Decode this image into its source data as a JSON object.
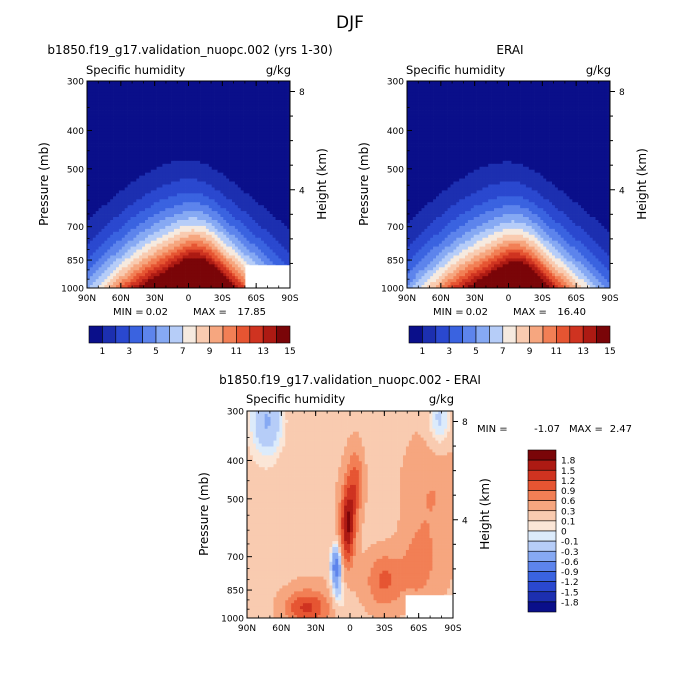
{
  "page_title": "DJF",
  "chart_data": [
    {
      "type": "heatmap",
      "title": "b1850.f19_g17.validation_nuopc.002 (yrs 1-30)",
      "left_label": "Specific humidity",
      "right_label": "g/kg",
      "xlabel": "",
      "ylabel": "Pressure (mb)",
      "y2label": "Height (km)",
      "x_ticks": [
        "90N",
        "60N",
        "30N",
        "0",
        "30S",
        "60S",
        "90S"
      ],
      "y_ticks": [
        "300",
        "400",
        "500",
        "700",
        "850",
        "1000"
      ],
      "y2_ticks": [
        "8",
        "4"
      ],
      "stats": {
        "min_label": "MIN =",
        "min": "0.02",
        "max_label": "MAX =",
        "max": "17.85"
      },
      "colorbar": {
        "labels": [
          "1",
          "3",
          "5",
          "7",
          "9",
          "11",
          "13",
          "15"
        ],
        "levels": [
          1,
          2,
          3,
          4,
          5,
          6,
          7,
          8,
          9,
          10,
          11,
          12,
          13,
          14,
          15
        ],
        "colors": [
          "#0a0f8a",
          "#1c2fb0",
          "#2a48cf",
          "#3a63e0",
          "#5d84ec",
          "#86a9f3",
          "#b6cdf8",
          "#f6eadf",
          "#f9cbb0",
          "#f6a67f",
          "#f27f55",
          "#e65532",
          "#cf3320",
          "#ad1a13",
          "#7a0508"
        ]
      },
      "max_value": 17.85
    },
    {
      "type": "heatmap",
      "title": "ERAI",
      "left_label": "Specific humidity",
      "right_label": "g/kg",
      "xlabel": "",
      "ylabel": "Pressure (mb)",
      "y2label": "Height (km)",
      "x_ticks": [
        "90N",
        "60N",
        "30N",
        "0",
        "30S",
        "60S",
        "90S"
      ],
      "y_ticks": [
        "300",
        "400",
        "500",
        "700",
        "850",
        "1000"
      ],
      "y2_ticks": [
        "8",
        "4"
      ],
      "stats": {
        "min_label": "MIN =",
        "min": "0.02",
        "max_label": "MAX =",
        "max": "16.40"
      },
      "colorbar": {
        "labels": [
          "1",
          "3",
          "5",
          "7",
          "9",
          "11",
          "13",
          "15"
        ],
        "levels": [
          1,
          2,
          3,
          4,
          5,
          6,
          7,
          8,
          9,
          10,
          11,
          12,
          13,
          14,
          15
        ],
        "colors": [
          "#0a0f8a",
          "#1c2fb0",
          "#2a48cf",
          "#3a63e0",
          "#5d84ec",
          "#86a9f3",
          "#b6cdf8",
          "#f6eadf",
          "#f9cbb0",
          "#f6a67f",
          "#f27f55",
          "#e65532",
          "#cf3320",
          "#ad1a13",
          "#7a0508"
        ]
      },
      "max_value": 16.4
    },
    {
      "type": "heatmap",
      "title": "b1850.f19_g17.validation_nuopc.002 - ERAI",
      "left_label": "Specific humidity",
      "right_label": "g/kg",
      "xlabel": "",
      "ylabel": "Pressure (mb)",
      "y2label": "Height (km)",
      "x_ticks": [
        "90N",
        "60N",
        "30N",
        "0",
        "30S",
        "60S",
        "90S"
      ],
      "y_ticks": [
        "300",
        "400",
        "500",
        "700",
        "850",
        "1000"
      ],
      "y2_ticks": [
        "8",
        "4"
      ],
      "stats": {
        "min_label": "MIN =",
        "min": "-1.07",
        "max_label": "MAX =",
        "max": "2.47"
      },
      "colorbar": {
        "labels": [
          "1.8",
          "1.5",
          "1.2",
          "0.9",
          "0.6",
          "0.3",
          "0.1",
          "0",
          "-0.1",
          "-0.3",
          "-0.6",
          "-0.9",
          "-1.2",
          "-1.5",
          "-1.8"
        ],
        "colors": [
          "#7a0508",
          "#ad1a13",
          "#cf3320",
          "#e65532",
          "#f27f55",
          "#f6a67f",
          "#f9cbb0",
          "#fbe6d7",
          "#dcebfb",
          "#b6cdf8",
          "#86a9f3",
          "#5d84ec",
          "#3a63e0",
          "#2a48cf",
          "#1c2fb0",
          "#0a0f8a"
        ]
      }
    }
  ]
}
